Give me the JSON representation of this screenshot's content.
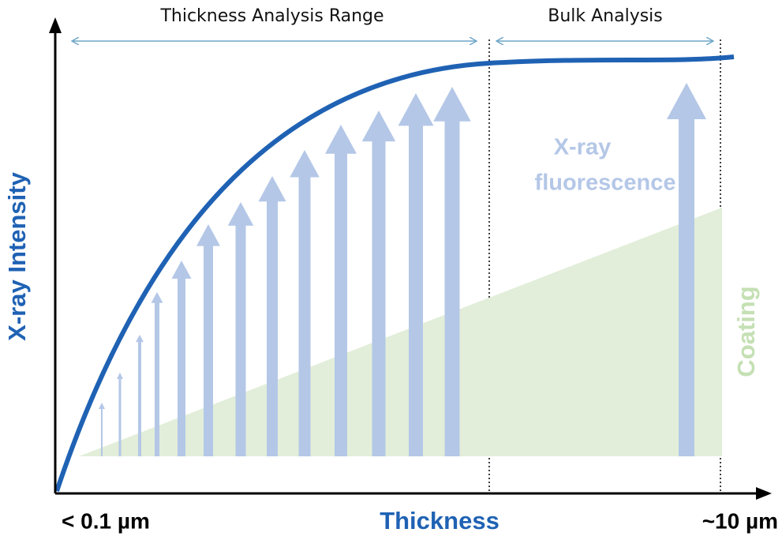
{
  "ranges": {
    "thickness_range": "Thickness Analysis Range",
    "bulk": "Bulk Analysis"
  },
  "axes": {
    "y_label": "X-ray Intensity",
    "x_label": "Thickness",
    "x_min": "< 0.1 µm",
    "x_max": "~10 µm"
  },
  "annotations": {
    "fluorescence": [
      "X-ray",
      "fluorescence"
    ],
    "coating": "Coating"
  }
}
